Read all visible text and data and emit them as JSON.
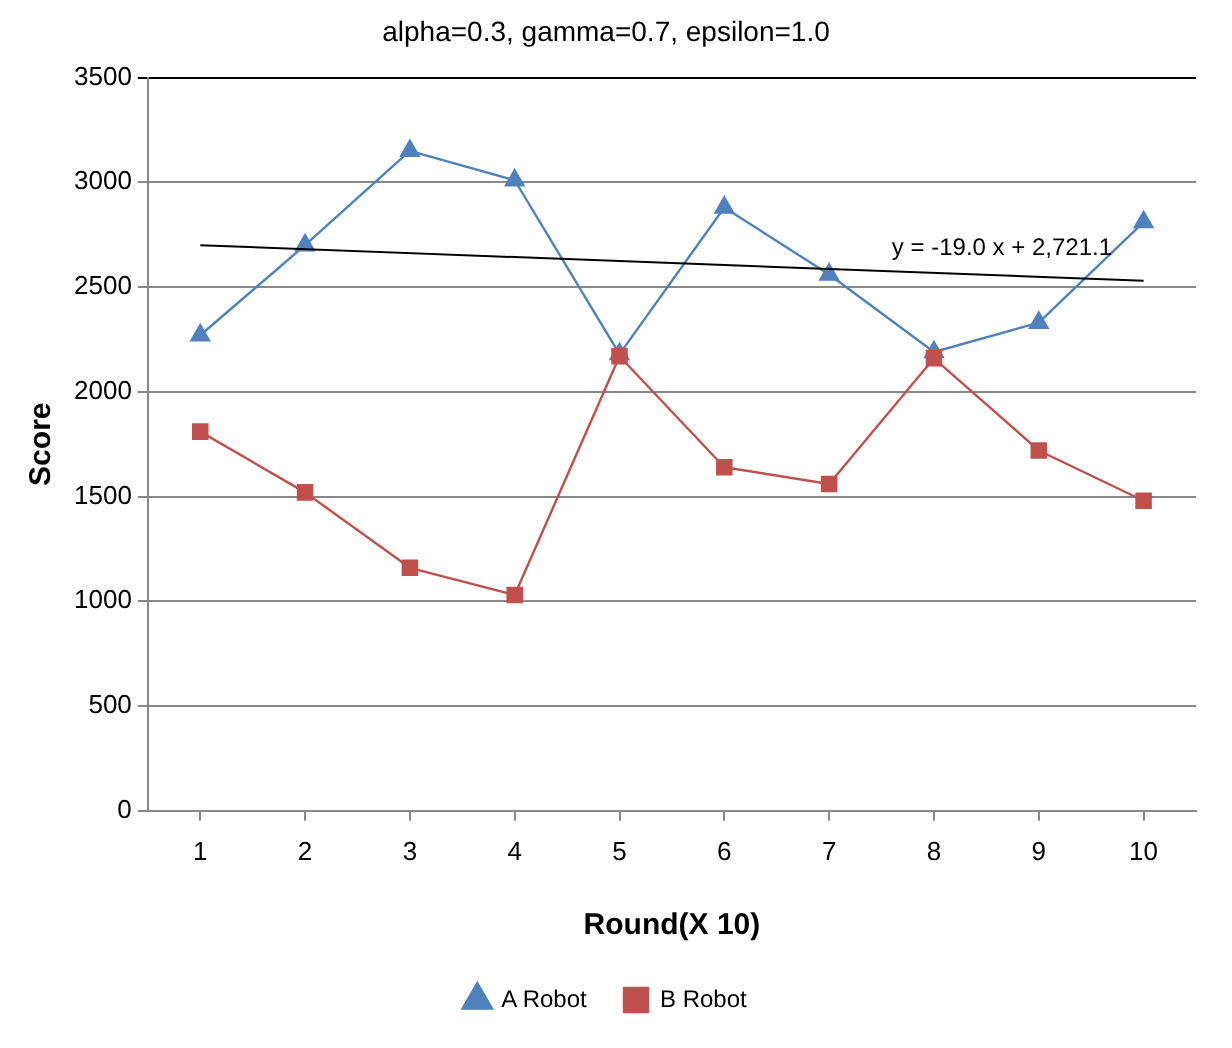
{
  "chart_data": {
    "type": "line",
    "title": "alpha=0.3, gamma=0.7, epsilon=1.0",
    "xlabel": "Round(X 10)",
    "ylabel": "Score",
    "x": [
      1,
      2,
      3,
      4,
      5,
      6,
      7,
      8,
      9,
      10
    ],
    "series": [
      {
        "name": "A Robot",
        "color": "#4f81bd",
        "marker": "triangle",
        "values": [
          2270,
          2700,
          3150,
          3010,
          2180,
          2880,
          2560,
          2190,
          2330,
          2810
        ]
      },
      {
        "name": "B Robot",
        "color": "#c0504d",
        "marker": "square",
        "values": [
          1810,
          1520,
          1160,
          1030,
          2170,
          1640,
          1560,
          2160,
          1720,
          1480
        ]
      },
      {
        "type": "line",
        "color": "#000000",
        "marker": "none",
        "x": [
          1,
          10
        ],
        "values": [
          2700,
          2530
        ]
      }
    ],
    "annotations": [
      "y = -19.0 x + 2,721.1"
    ],
    "xlim": [
      0.5,
      10.5
    ],
    "xticks": [
      1,
      2,
      3,
      4,
      5,
      6,
      7,
      8,
      9,
      10
    ],
    "ylim": [
      0,
      3500
    ],
    "yticks": [
      0,
      500,
      1000,
      1500,
      2000,
      2500,
      3000,
      3500
    ],
    "grid": "y",
    "legend": "bottom"
  }
}
